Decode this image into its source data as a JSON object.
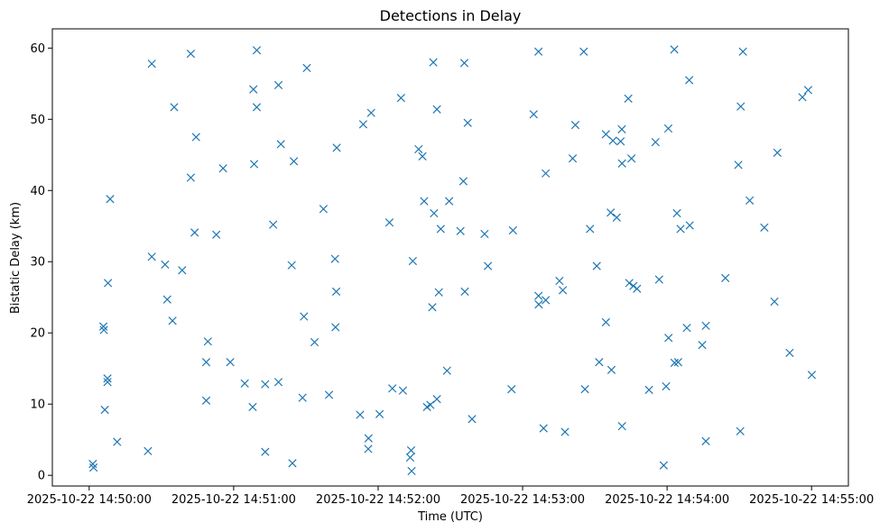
{
  "chart_data": {
    "type": "scatter",
    "title": "Detections in Delay",
    "xlabel": "Time (UTC)",
    "ylabel": "Bistatic Delay (km)",
    "marker": "x",
    "color": "#1f77b4",
    "grid": false,
    "xlim_seconds_from_start": [
      -15.3,
      315.3
    ],
    "ylim": [
      -1.5,
      62.7
    ],
    "x_ticks": [
      {
        "seconds": 0,
        "label": "2025-10-22 14:50:00"
      },
      {
        "seconds": 60,
        "label": "2025-10-22 14:51:00"
      },
      {
        "seconds": 120,
        "label": "2025-10-22 14:52:00"
      },
      {
        "seconds": 180,
        "label": "2025-10-22 14:53:00"
      },
      {
        "seconds": 240,
        "label": "2025-10-22 14:54:00"
      },
      {
        "seconds": 300,
        "label": "2025-10-22 14:55:00"
      }
    ],
    "y_ticks": [
      0,
      10,
      20,
      30,
      40,
      50,
      60
    ],
    "points": [
      [
        1.5,
        1.6
      ],
      [
        1.8,
        1.1
      ],
      [
        5.9,
        20.9
      ],
      [
        6.1,
        20.4
      ],
      [
        6.5,
        9.2
      ],
      [
        7.6,
        13.6
      ],
      [
        7.6,
        13.1
      ],
      [
        7.8,
        27.0
      ],
      [
        8.7,
        38.8
      ],
      [
        11.6,
        4.7
      ],
      [
        24.4,
        3.4
      ],
      [
        26.0,
        57.8
      ],
      [
        26.0,
        30.7
      ],
      [
        31.5,
        29.6
      ],
      [
        32.4,
        24.7
      ],
      [
        34.6,
        21.7
      ],
      [
        35.3,
        51.7
      ],
      [
        38.6,
        28.8
      ],
      [
        42.2,
        41.8
      ],
      [
        42.2,
        59.2
      ],
      [
        43.8,
        34.1
      ],
      [
        44.4,
        47.5
      ],
      [
        48.6,
        15.9
      ],
      [
        48.6,
        10.5
      ],
      [
        49.3,
        18.8
      ],
      [
        52.8,
        33.8
      ],
      [
        55.6,
        43.1
      ],
      [
        58.6,
        15.9
      ],
      [
        64.6,
        12.9
      ],
      [
        67.9,
        9.6
      ],
      [
        68.2,
        54.2
      ],
      [
        68.5,
        43.7
      ],
      [
        69.6,
        51.7
      ],
      [
        69.6,
        59.7
      ],
      [
        73.1,
        3.3
      ],
      [
        73.1,
        12.8
      ],
      [
        76.4,
        35.2
      ],
      [
        78.6,
        54.8
      ],
      [
        78.6,
        13.1
      ],
      [
        79.6,
        46.5
      ],
      [
        84.1,
        29.5
      ],
      [
        84.4,
        1.7
      ],
      [
        85.0,
        44.1
      ],
      [
        88.6,
        10.9
      ],
      [
        89.2,
        22.3
      ],
      [
        90.4,
        57.2
      ],
      [
        93.6,
        18.7
      ],
      [
        97.3,
        37.4
      ],
      [
        99.6,
        11.3
      ],
      [
        102.1,
        30.4
      ],
      [
        102.3,
        20.8
      ],
      [
        102.6,
        25.8
      ],
      [
        102.8,
        46.0
      ],
      [
        112.5,
        8.5
      ],
      [
        113.8,
        49.3
      ],
      [
        115.9,
        3.7
      ],
      [
        116.0,
        5.2
      ],
      [
        117.1,
        50.9
      ],
      [
        120.6,
        8.6
      ],
      [
        124.7,
        35.5
      ],
      [
        125.9,
        12.2
      ],
      [
        129.5,
        53.0
      ],
      [
        130.3,
        11.9
      ],
      [
        133.3,
        2.5
      ],
      [
        133.7,
        3.5
      ],
      [
        133.9,
        0.6
      ],
      [
        134.4,
        30.1
      ],
      [
        136.8,
        45.8
      ],
      [
        138.4,
        44.8
      ],
      [
        139.1,
        38.5
      ],
      [
        140.3,
        9.6
      ],
      [
        141.7,
        9.9
      ],
      [
        142.5,
        23.6
      ],
      [
        142.9,
        58.0
      ],
      [
        143.2,
        36.8
      ],
      [
        144.4,
        10.7
      ],
      [
        144.4,
        51.4
      ],
      [
        145.2,
        25.7
      ],
      [
        146.0,
        34.6
      ],
      [
        148.6,
        14.7
      ],
      [
        149.5,
        38.5
      ],
      [
        154.2,
        34.3
      ],
      [
        155.4,
        41.3
      ],
      [
        155.8,
        57.9
      ],
      [
        156.0,
        25.8
      ],
      [
        157.2,
        49.5
      ],
      [
        159.0,
        7.9
      ],
      [
        164.2,
        33.9
      ],
      [
        165.6,
        29.4
      ],
      [
        175.4,
        12.1
      ],
      [
        176.0,
        34.4
      ],
      [
        184.6,
        50.7
      ],
      [
        186.6,
        59.5
      ],
      [
        186.6,
        25.2
      ],
      [
        186.7,
        24.0
      ],
      [
        188.7,
        6.6
      ],
      [
        189.6,
        24.6
      ],
      [
        189.6,
        42.4
      ],
      [
        195.3,
        27.3
      ],
      [
        196.7,
        26.0
      ],
      [
        197.6,
        6.1
      ],
      [
        200.8,
        44.5
      ],
      [
        201.9,
        49.2
      ],
      [
        205.4,
        59.5
      ],
      [
        205.9,
        12.1
      ],
      [
        208.0,
        34.6
      ],
      [
        210.8,
        29.4
      ],
      [
        211.8,
        15.9
      ],
      [
        214.6,
        21.5
      ],
      [
        214.6,
        47.9
      ],
      [
        216.6,
        36.9
      ],
      [
        216.9,
        14.8
      ],
      [
        217.5,
        47.0
      ],
      [
        219.1,
        36.2
      ],
      [
        220.7,
        46.9
      ],
      [
        221.2,
        48.6
      ],
      [
        221.3,
        6.9
      ],
      [
        221.3,
        43.8
      ],
      [
        223.9,
        52.9
      ],
      [
        224.3,
        27.0
      ],
      [
        225.2,
        44.5
      ],
      [
        226.0,
        26.6
      ],
      [
        227.5,
        26.2
      ],
      [
        232.5,
        12.0
      ],
      [
        235.2,
        46.8
      ],
      [
        236.7,
        27.5
      ],
      [
        238.6,
        1.4
      ],
      [
        239.6,
        12.5
      ],
      [
        240.5,
        48.7
      ],
      [
        240.6,
        19.3
      ],
      [
        243.0,
        59.8
      ],
      [
        243.1,
        15.8
      ],
      [
        244.1,
        36.8
      ],
      [
        244.6,
        15.9
      ],
      [
        245.6,
        34.6
      ],
      [
        248.2,
        20.7
      ],
      [
        249.2,
        55.5
      ],
      [
        249.4,
        35.1
      ],
      [
        254.6,
        18.3
      ],
      [
        256.1,
        4.8
      ],
      [
        256.1,
        21.0
      ],
      [
        264.2,
        27.7
      ],
      [
        269.6,
        43.6
      ],
      [
        270.4,
        6.2
      ],
      [
        270.6,
        51.8
      ],
      [
        271.5,
        59.5
      ],
      [
        274.3,
        38.6
      ],
      [
        280.4,
        34.8
      ],
      [
        284.6,
        24.4
      ],
      [
        285.8,
        45.3
      ],
      [
        290.9,
        17.2
      ],
      [
        296.2,
        53.1
      ],
      [
        298.6,
        54.1
      ],
      [
        300.1,
        14.1
      ]
    ]
  }
}
